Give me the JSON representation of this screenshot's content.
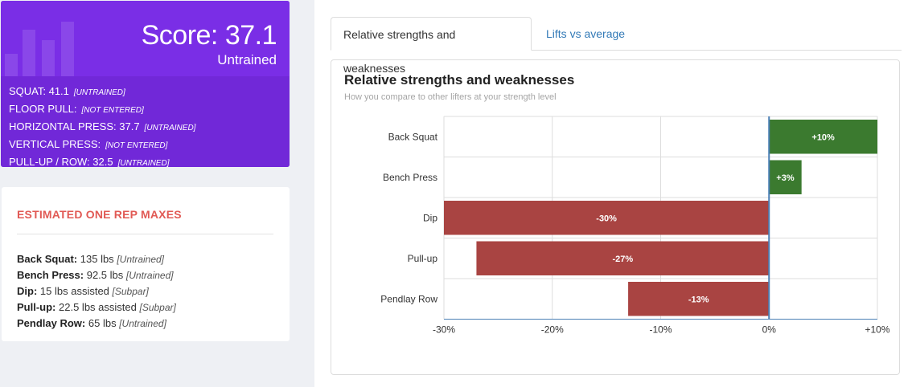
{
  "score_card": {
    "score_text": "Score: 37.1",
    "level": "Untrained",
    "lines": [
      {
        "label": "SQUAT: 41.1",
        "tag": "[UNTRAINED]"
      },
      {
        "label": "FLOOR PULL:",
        "tag": "[NOT ENTERED]"
      },
      {
        "label": "HORIZONTAL PRESS: 37.7",
        "tag": "[UNTRAINED]"
      },
      {
        "label": "VERTICAL PRESS:",
        "tag": "[NOT ENTERED]"
      },
      {
        "label": "PULL-UP / ROW: 32.5",
        "tag": "[UNTRAINED]"
      }
    ]
  },
  "one_rep_maxes": {
    "title": "ESTIMATED ONE REP MAXES",
    "items": [
      {
        "lift": "Back Squat:",
        "value": "135 lbs",
        "level": "[Untrained]"
      },
      {
        "lift": "Bench Press:",
        "value": "92.5 lbs",
        "level": "[Untrained]"
      },
      {
        "lift": "Dip:",
        "value": "15 lbs assisted",
        "level": "[Subpar]"
      },
      {
        "lift": "Pull-up:",
        "value": "22.5 lbs assisted",
        "level": "[Subpar]"
      },
      {
        "lift": "Pendlay Row:",
        "value": "65 lbs",
        "level": "[Untrained]"
      }
    ]
  },
  "tabs": {
    "active": "Relative strengths and weaknesses",
    "inactive": "Lifts vs average"
  },
  "chart_data": {
    "type": "bar",
    "orientation": "horizontal",
    "title": "Relative strengths and weaknesses",
    "subtitle": "How you compare to other lifters at your strength level",
    "categories": [
      "Back Squat",
      "Bench Press",
      "Dip",
      "Pull-up",
      "Pendlay Row"
    ],
    "values": [
      10,
      3,
      -30,
      -27,
      -13
    ],
    "value_labels": [
      "+10%",
      "+3%",
      "-30%",
      "-27%",
      "-13%"
    ],
    "xlim": [
      -30,
      10
    ],
    "x_ticks": [
      -30,
      -20,
      -10,
      0,
      10
    ],
    "x_tick_labels": [
      "-30%",
      "-20%",
      "-10%",
      "0%",
      "+10%"
    ],
    "grid": true,
    "colors": {
      "positive": "#3b7a2f",
      "negative": "#a94442",
      "zero_line": "#4a7fb5",
      "grid": "#dddddd"
    }
  }
}
